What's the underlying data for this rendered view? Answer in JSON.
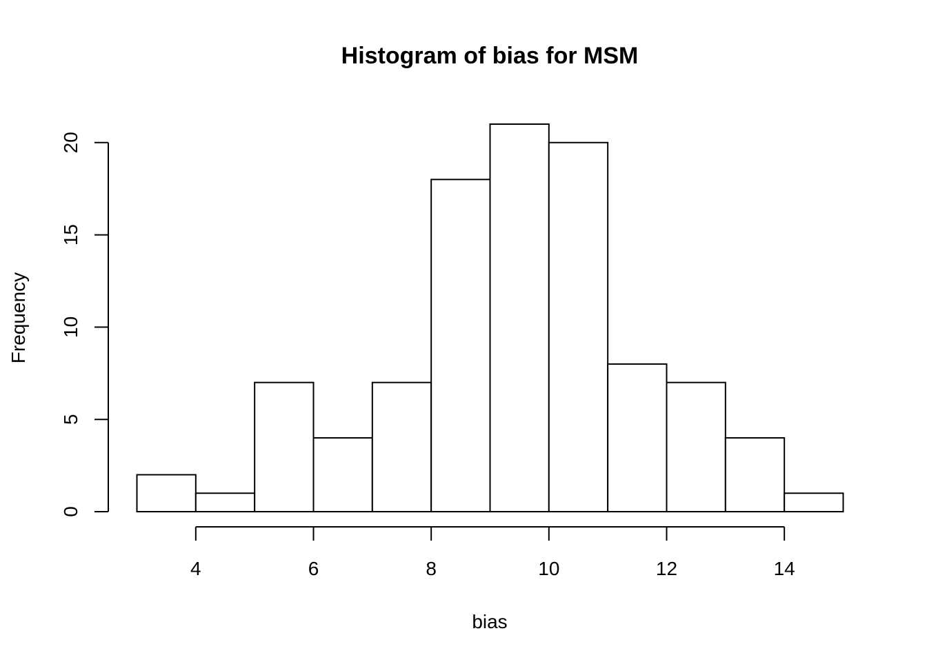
{
  "chart_data": {
    "type": "bar",
    "title": "Histogram of bias for MSM",
    "xlabel": "bias",
    "ylabel": "Frequency",
    "bins": [
      {
        "start": 3,
        "end": 4,
        "count": 2
      },
      {
        "start": 4,
        "end": 5,
        "count": 1
      },
      {
        "start": 5,
        "end": 6,
        "count": 7
      },
      {
        "start": 6,
        "end": 7,
        "count": 4
      },
      {
        "start": 7,
        "end": 8,
        "count": 7
      },
      {
        "start": 8,
        "end": 9,
        "count": 18
      },
      {
        "start": 9,
        "end": 10,
        "count": 21
      },
      {
        "start": 10,
        "end": 11,
        "count": 20
      },
      {
        "start": 11,
        "end": 12,
        "count": 8
      },
      {
        "start": 12,
        "end": 13,
        "count": 7
      },
      {
        "start": 13,
        "end": 14,
        "count": 4
      },
      {
        "start": 14,
        "end": 15,
        "count": 1
      }
    ],
    "xlim": [
      3,
      15
    ],
    "ylim": [
      0,
      21
    ],
    "x_ticks": [
      4,
      6,
      8,
      10,
      12,
      14
    ],
    "x_tick_labels": [
      "4",
      "6",
      "8",
      "10",
      "12",
      "14"
    ],
    "y_ticks": [
      0,
      5,
      10,
      15,
      20
    ],
    "y_tick_labels": [
      "0",
      "5",
      "10",
      "15",
      "20"
    ],
    "grid": false,
    "colors": {
      "bar_fill": "#ffffff",
      "bar_stroke": "#000000",
      "background": "#ffffff"
    }
  }
}
